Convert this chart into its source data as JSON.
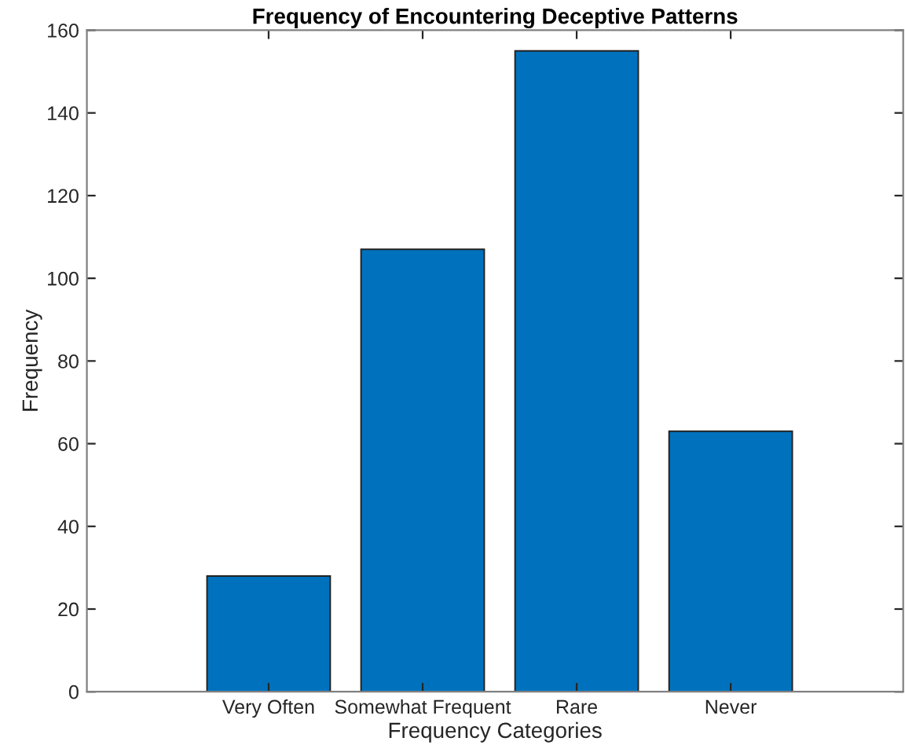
{
  "chart_data": {
    "type": "bar",
    "title": "Frequency of Encountering Deceptive Patterns",
    "xlabel": "Frequency Categories",
    "ylabel": "Frequency",
    "categories": [
      "Very Often",
      "Somewhat Frequent",
      "Rare",
      "Never"
    ],
    "values": [
      28,
      107,
      155,
      63
    ],
    "color": "#0072bd",
    "ylim": [
      0,
      160
    ],
    "yticks": [
      0,
      20,
      40,
      60,
      80,
      100,
      120,
      140,
      160
    ],
    "grid": false,
    "legend": false
  }
}
